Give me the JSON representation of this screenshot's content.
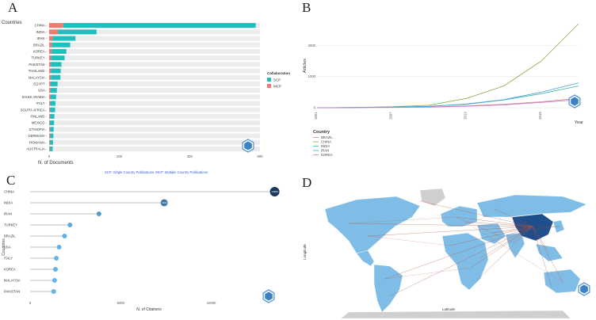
{
  "panels": {
    "a": "A",
    "b": "B",
    "c": "C",
    "d": "D"
  },
  "icon_mark": "hexagon-logo-icon",
  "colors": {
    "scp": "#20bfbf",
    "mcp": "#f07a6e",
    "bar_bg": "#ececec",
    "blue_dark": "#1b3a5c",
    "blue_light": "#62b5ea",
    "map_blue": "#7fbde6",
    "map_dark": "#1f4e8c",
    "map_grey": "#cfcfcf",
    "link": "#b5533c"
  },
  "chart_data": [
    {
      "type": "bar",
      "orientation": "horizontal",
      "stacked": true,
      "ylabel": "Countries",
      "xlabel": "N. of Documents",
      "xlim": [
        0,
        600
      ],
      "xticks": [
        0,
        200,
        400,
        600
      ],
      "categories": [
        "CHINA",
        "INDIA",
        "IRAN",
        "BRAZIL",
        "KOREA",
        "TURKEY",
        "PAKISTAN",
        "THAILAND",
        "MALAYSIA",
        "EGYPT",
        "USA",
        "SAUDI ARABIA",
        "ITALY",
        "SOUTH AFRICA",
        "FINLAND",
        "MEXICO",
        "ETHIOPIA",
        "GERMANY",
        "ROMANIA",
        "AUSTRALIA"
      ],
      "series": [
        {
          "name": "SCP",
          "values": [
            548,
            110,
            65,
            52,
            42,
            38,
            30,
            28,
            27,
            20,
            18,
            16,
            15,
            14,
            12,
            12,
            10,
            9,
            9,
            8
          ]
        },
        {
          "name": "MCP",
          "values": [
            40,
            25,
            10,
            8,
            7,
            6,
            5,
            5,
            5,
            4,
            4,
            4,
            3,
            3,
            3,
            2,
            3,
            3,
            2,
            2
          ]
        }
      ],
      "legend": {
        "title": "Collaboration",
        "entries": [
          "SCP",
          "MCP"
        ]
      },
      "caption": "SCP: Single Country Publications, MCP: Multiple Country Publications"
    },
    {
      "type": "line",
      "xlabel": "Year",
      "ylabel": "Articles",
      "x": [
        2001,
        2004,
        2007,
        2010,
        2013,
        2016,
        2019,
        2022
      ],
      "xticks": [
        2001,
        2007,
        2013,
        2019
      ],
      "yticks": [
        0,
        1000,
        2000
      ],
      "ylim": [
        0,
        2800
      ],
      "series": [
        {
          "name": "BRAZIL",
          "values": [
            0,
            5,
            12,
            25,
            60,
            110,
            190,
            300
          ]
        },
        {
          "name": "CHINA",
          "values": [
            0,
            10,
            30,
            80,
            300,
            700,
            1500,
            2700
          ]
        },
        {
          "name": "INDIA",
          "values": [
            0,
            8,
            20,
            45,
            110,
            250,
            450,
            700
          ]
        },
        {
          "name": "IRAN",
          "values": [
            0,
            6,
            15,
            40,
            120,
            260,
            500,
            800
          ]
        },
        {
          "name": "KOREA",
          "values": [
            0,
            3,
            8,
            18,
            45,
            90,
            170,
            260
          ]
        }
      ],
      "legend": {
        "title": "Country",
        "entries": [
          "BRAZIL",
          "CHINA",
          "INDIA",
          "IRAN",
          "KOREA"
        ]
      }
    },
    {
      "type": "lollipop",
      "xlabel": "N. of Citations",
      "ylabel": "Countries",
      "xlim": [
        0,
        14000
      ],
      "xticks": [
        0,
        5000,
        10000
      ],
      "categories": [
        "CHINA",
        "INDIA",
        "IRAN",
        "TURKEY",
        "BRAZIL",
        "USA",
        "ITALY",
        "KOREA",
        "MALAYSIA",
        "PAKISTAN"
      ],
      "values": [
        13500,
        7400,
        3800,
        2200,
        1900,
        1600,
        1450,
        1400,
        1350,
        1300
      ],
      "point_labels": [
        "13500",
        "7400",
        "3800",
        "2200",
        "1900",
        "1600",
        "1450",
        "1400",
        "1350",
        "1300"
      ]
    },
    {
      "type": "map",
      "xlabel": "Latitude",
      "ylabel": "Longitude",
      "hub": "CHINA"
    }
  ]
}
